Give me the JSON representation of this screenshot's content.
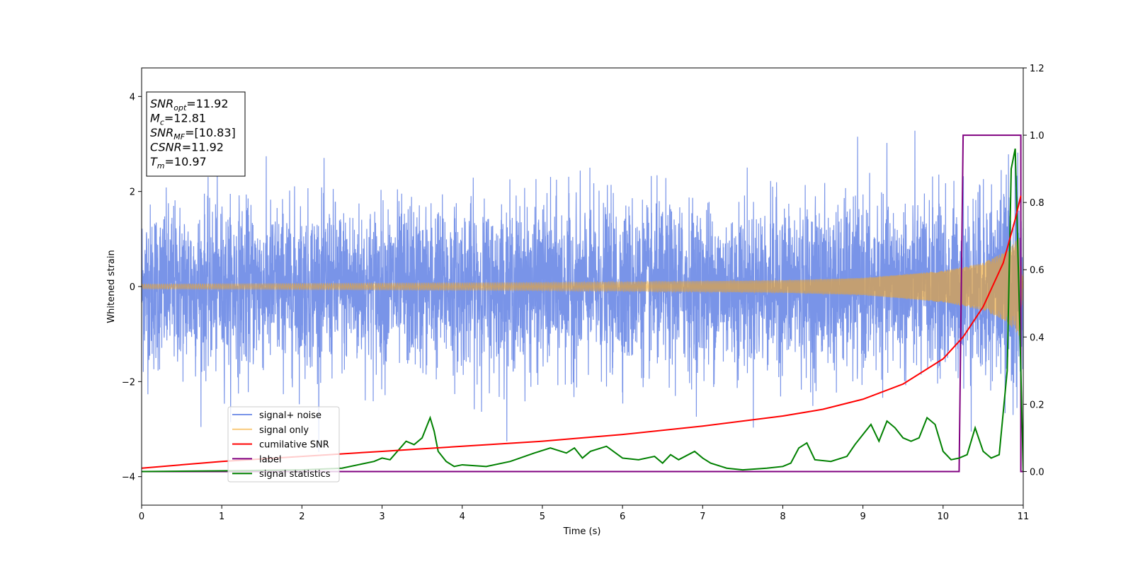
{
  "chart_data": {
    "type": "line",
    "xlabel": "Time (s)",
    "ylabel_left": "Whitened strain",
    "xlim": [
      0,
      11
    ],
    "ylim_left": [
      -4.6,
      4.6
    ],
    "ylim_right": [
      -0.1,
      1.2
    ],
    "x_ticks": [
      "0",
      "1",
      "2",
      "3",
      "4",
      "5",
      "6",
      "7",
      "8",
      "9",
      "10",
      "11"
    ],
    "y_ticks_left": [
      "−4",
      "−2",
      "0",
      "2",
      "4"
    ],
    "y_ticks_right": [
      "0.0",
      "0.2",
      "0.4",
      "0.6",
      "0.8",
      "1.0",
      "1.2"
    ],
    "grid": false,
    "legend_placement": "lower-left",
    "colors": {
      "signal_noise": "#6a88e6",
      "signal_only": "#f5a623",
      "cumulative_snr": "#ff0000",
      "label": "#800080",
      "signal_statistics": "#008000"
    },
    "series": [
      {
        "name": "signal+ noise",
        "axis": "left",
        "description_values": "whitened noise, amplitude about ±2 with spikes to ±4, spanning 0 to 11 s"
      },
      {
        "name": "signal only",
        "axis": "left",
        "envelope": {
          "x": [
            0,
            5,
            8,
            9,
            10,
            10.5,
            10.8,
            10.95,
            11.0
          ],
          "amp": [
            0.05,
            0.08,
            0.13,
            0.18,
            0.33,
            0.5,
            0.75,
            1.05,
            0.0
          ]
        }
      },
      {
        "name": "cumilative SNR",
        "axis": "right",
        "x": [
          0,
          1,
          2,
          3,
          4,
          5,
          6,
          7,
          8,
          8.5,
          9,
          9.5,
          10,
          10.25,
          10.5,
          10.75,
          10.9,
          10.97
        ],
        "y": [
          0.01,
          0.03,
          0.045,
          0.06,
          0.075,
          0.09,
          0.11,
          0.135,
          0.165,
          0.185,
          0.215,
          0.26,
          0.335,
          0.4,
          0.49,
          0.62,
          0.75,
          0.82
        ]
      },
      {
        "name": "label",
        "axis": "right",
        "x": [
          0,
          10.2,
          10.25,
          10.97,
          10.97,
          11.0
        ],
        "y": [
          0.0,
          0.0,
          1.0,
          1.0,
          0.0,
          0.0
        ]
      },
      {
        "name": "signal statistics",
        "axis": "right",
        "x": [
          0,
          1,
          2,
          2.5,
          2.9,
          3.0,
          3.1,
          3.3,
          3.4,
          3.5,
          3.6,
          3.65,
          3.7,
          3.8,
          3.9,
          4.0,
          4.3,
          4.6,
          4.9,
          5.1,
          5.3,
          5.4,
          5.5,
          5.6,
          5.8,
          6.0,
          6.2,
          6.4,
          6.5,
          6.6,
          6.7,
          6.9,
          7.0,
          7.1,
          7.3,
          7.5,
          7.8,
          8.0,
          8.1,
          8.2,
          8.3,
          8.4,
          8.6,
          8.8,
          8.9,
          9.0,
          9.1,
          9.2,
          9.3,
          9.4,
          9.5,
          9.6,
          9.7,
          9.8,
          9.9,
          10.0,
          10.1,
          10.2,
          10.3,
          10.4,
          10.5,
          10.6,
          10.7,
          10.8,
          10.85,
          10.9,
          10.95,
          11.0
        ],
        "y": [
          0.0,
          0.002,
          0.005,
          0.01,
          0.03,
          0.04,
          0.035,
          0.09,
          0.08,
          0.1,
          0.16,
          0.12,
          0.06,
          0.03,
          0.015,
          0.02,
          0.015,
          0.03,
          0.055,
          0.07,
          0.055,
          0.07,
          0.04,
          0.06,
          0.075,
          0.04,
          0.035,
          0.045,
          0.025,
          0.05,
          0.035,
          0.06,
          0.04,
          0.025,
          0.01,
          0.005,
          0.01,
          0.015,
          0.025,
          0.07,
          0.085,
          0.035,
          0.03,
          0.045,
          0.08,
          0.11,
          0.14,
          0.09,
          0.15,
          0.13,
          0.1,
          0.09,
          0.1,
          0.16,
          0.14,
          0.06,
          0.035,
          0.04,
          0.05,
          0.13,
          0.06,
          0.04,
          0.05,
          0.3,
          0.9,
          0.96,
          0.5,
          0.0
        ]
      }
    ],
    "annotation": [
      {
        "base": "SNR",
        "sub": "opt",
        "value": "=11.92"
      },
      {
        "base": "M",
        "sub": "c",
        "value": "=12.81"
      },
      {
        "base": "SNR",
        "sub": "MF",
        "value": "=[10.83]"
      },
      {
        "base": "CSNR",
        "sub": "",
        "value": "=11.92"
      },
      {
        "base": "T",
        "sub": "m",
        "value": "=10.97"
      }
    ]
  }
}
